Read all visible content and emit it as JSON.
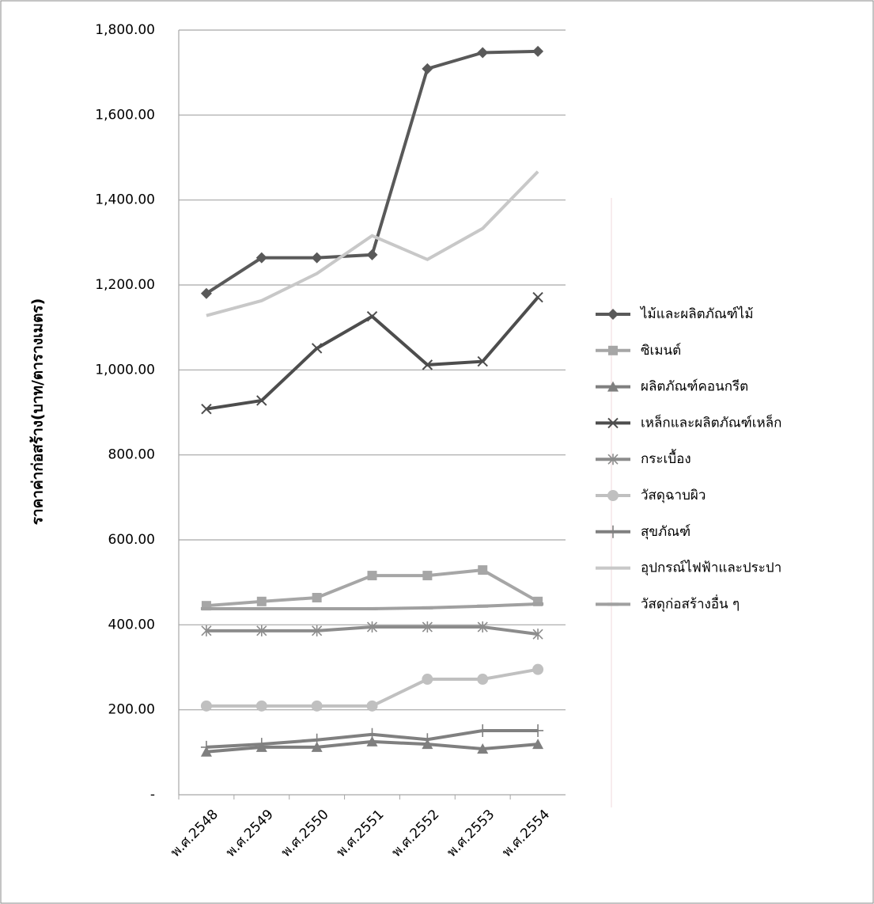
{
  "chart_data": {
    "type": "line",
    "y_label": "ราคาค่าก่อสร้าง(บาท/ตารางเมตร)",
    "categories": [
      "พ.ศ.2548",
      "พ.ศ.2549",
      "พ.ศ.2550",
      "พ.ศ.2551",
      "พ.ศ.2552",
      "พ.ศ.2553",
      "พ.ศ.2554"
    ],
    "ylim": [
      0,
      1800
    ],
    "yticks": [
      {
        "value": 0,
        "label": "-"
      },
      {
        "value": 200,
        "label": "200.00"
      },
      {
        "value": 400,
        "label": "400.00"
      },
      {
        "value": 600,
        "label": "600.00"
      },
      {
        "value": 800,
        "label": "800.00"
      },
      {
        "value": 1000,
        "label": "1,000.00"
      },
      {
        "value": 1200,
        "label": "1,200.00"
      },
      {
        "value": 1400,
        "label": "1,400.00"
      },
      {
        "value": 1600,
        "label": "1,600.00"
      },
      {
        "value": 1800,
        "label": "1,800.00"
      }
    ],
    "grid": true,
    "legend": "right",
    "series": [
      {
        "name": "ไม้และผลิตภัณฑ์ไม้",
        "color": "#595959",
        "marker": "diamond",
        "values": [
          1180,
          1264,
          1264,
          1271,
          1709,
          1747,
          1750
        ]
      },
      {
        "name": "ซิเมนต์",
        "color": "#a6a6a6",
        "marker": "square",
        "values": [
          445,
          455,
          464,
          516,
          516,
          529,
          455
        ]
      },
      {
        "name": "ผลิตภัณฑ์คอนกรีต",
        "color": "#7f7f7f",
        "marker": "triangle",
        "values": [
          101,
          112,
          112,
          125,
          119,
          108,
          119
        ]
      },
      {
        "name": "เหล็กและผลิตภัณฑ์เหล็ก",
        "color": "#4d4d4d",
        "marker": "x",
        "values": [
          908,
          928,
          1051,
          1126,
          1012,
          1020,
          1171
        ]
      },
      {
        "name": "กระเบื้อง",
        "color": "#8c8c8c",
        "marker": "star",
        "values": [
          386,
          386,
          386,
          395,
          395,
          395,
          378
        ]
      },
      {
        "name": "วัสดุฉาบผิว",
        "color": "#c0c0c0",
        "marker": "circle",
        "values": [
          209,
          209,
          209,
          209,
          272,
          272,
          295
        ]
      },
      {
        "name": "สุขภัณฑ์",
        "color": "#808080",
        "marker": "plus",
        "values": [
          112,
          119,
          129,
          142,
          130,
          151,
          151
        ]
      },
      {
        "name": "อุปกรณ์ไฟฟ้าและประปา",
        "color": "#c8c8c8",
        "marker": "none",
        "values": [
          1128,
          1163,
          1227,
          1316,
          1260,
          1333,
          1467
        ]
      },
      {
        "name": "วัสดุก่อสร้างอื่น ๆ",
        "color": "#a0a0a0",
        "marker": "dash",
        "values": [
          438,
          438,
          438,
          438,
          440,
          444,
          449
        ]
      }
    ]
  }
}
